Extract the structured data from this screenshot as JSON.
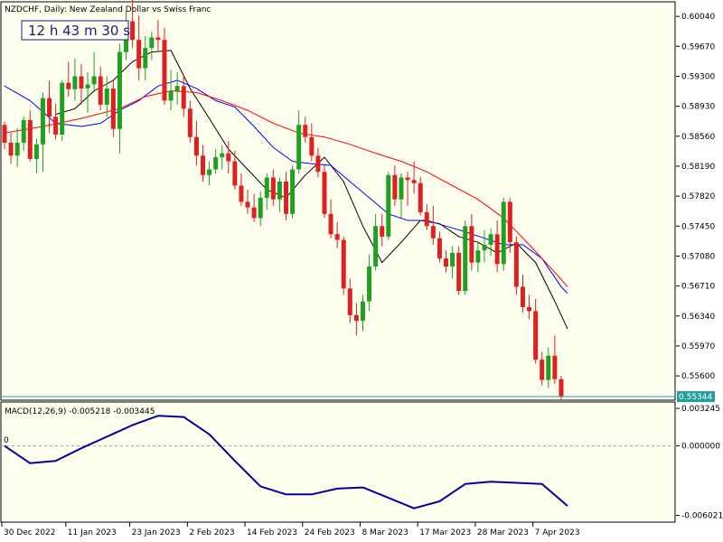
{
  "header": {
    "title": "NZDCHF, Daily:  New Zealand Dollar vs Swiss Franc",
    "timer": "12 h 43 m 30 s"
  },
  "colors": {
    "background": "#fffff0",
    "bull": "#20a020",
    "bear": "#e02020",
    "ma_fast": "#000000",
    "ma_mid": "#0000ff",
    "ma_slow": "#ff0000",
    "macd": "#0000a0",
    "price_line": "#20a0a0"
  },
  "chart_data": [
    {
      "type": "candlestick",
      "symbol": "NZDCHF",
      "timeframe": "Daily",
      "ylim": [
        0.553,
        0.6022
      ],
      "price_ticks": [
        "0.60040",
        "0.59670",
        "0.59300",
        "0.58930",
        "0.58560",
        "0.58190",
        "0.57820",
        "0.57450",
        "0.57080",
        "0.56710",
        "0.56340",
        "0.55970",
        "0.55600"
      ],
      "current_price": "0.55344",
      "date_labels": [
        {
          "label": "30 Dec 2022",
          "index": 0
        },
        {
          "label": "11 Jan 2023",
          "index": 10
        },
        {
          "label": "23 Jan 2023",
          "index": 20
        },
        {
          "label": "2 Feb 2023",
          "index": 29
        },
        {
          "label": "14 Feb 2023",
          "index": 38
        },
        {
          "label": "24 Feb 2023",
          "index": 47
        },
        {
          "label": "8 Mar 2023",
          "index": 56
        },
        {
          "label": "17 Mar 2023",
          "index": 65
        },
        {
          "label": "28 Mar 2023",
          "index": 74
        },
        {
          "label": "7 Apr 2023",
          "index": 83
        }
      ],
      "ohlc": [
        [
          0.587,
          0.5874,
          0.584,
          0.5848
        ],
        [
          0.5848,
          0.586,
          0.5822,
          0.5832
        ],
        [
          0.5832,
          0.5866,
          0.5818,
          0.5848
        ],
        [
          0.5848,
          0.588,
          0.5838,
          0.5876
        ],
        [
          0.5876,
          0.5888,
          0.5825,
          0.5828
        ],
        [
          0.5828,
          0.5853,
          0.581,
          0.5846
        ],
        [
          0.5846,
          0.591,
          0.5812,
          0.5903
        ],
        [
          0.5903,
          0.5925,
          0.586,
          0.588
        ],
        [
          0.588,
          0.5896,
          0.5852,
          0.5858
        ],
        [
          0.5858,
          0.5925,
          0.585,
          0.5922
        ],
        [
          0.5922,
          0.5948,
          0.5905,
          0.5914
        ],
        [
          0.5914,
          0.5952,
          0.59,
          0.593
        ],
        [
          0.593,
          0.5945,
          0.5895,
          0.5915
        ],
        [
          0.5915,
          0.5935,
          0.5885,
          0.592
        ],
        [
          0.592,
          0.596,
          0.591,
          0.593
        ],
        [
          0.593,
          0.5942,
          0.5888,
          0.5895
        ],
        [
          0.5895,
          0.593,
          0.588,
          0.5915
        ],
        [
          0.5915,
          0.5925,
          0.5855,
          0.5865
        ],
        [
          0.5865,
          0.597,
          0.5835,
          0.596
        ],
        [
          0.596,
          0.601,
          0.595,
          0.5998
        ],
        [
          0.5998,
          0.604,
          0.5965,
          0.5975
        ],
        [
          0.5975,
          0.6005,
          0.5925,
          0.594
        ],
        [
          0.594,
          0.598,
          0.5925,
          0.5965
        ],
        [
          0.5965,
          0.5985,
          0.595,
          0.5978
        ],
        [
          0.5978,
          0.6,
          0.5962,
          0.5975
        ],
        [
          0.5975,
          0.599,
          0.5895,
          0.59
        ],
        [
          0.59,
          0.5938,
          0.5888,
          0.5912
        ],
        [
          0.5912,
          0.5935,
          0.5895,
          0.5918
        ],
        [
          0.5918,
          0.5932,
          0.588,
          0.589
        ],
        [
          0.589,
          0.59,
          0.5848,
          0.5855
        ],
        [
          0.5855,
          0.5875,
          0.582,
          0.5832
        ],
        [
          0.5832,
          0.5845,
          0.58,
          0.5808
        ],
        [
          0.5808,
          0.5825,
          0.5795,
          0.5815
        ],
        [
          0.5815,
          0.584,
          0.581,
          0.583
        ],
        [
          0.583,
          0.5845,
          0.5815,
          0.5835
        ],
        [
          0.5835,
          0.585,
          0.581,
          0.5825
        ],
        [
          0.5825,
          0.5838,
          0.579,
          0.5795
        ],
        [
          0.5795,
          0.581,
          0.577,
          0.5775
        ],
        [
          0.5775,
          0.579,
          0.576,
          0.5768
        ],
        [
          0.5768,
          0.5785,
          0.575,
          0.5755
        ],
        [
          0.5755,
          0.5788,
          0.5745,
          0.578
        ],
        [
          0.578,
          0.581,
          0.5765,
          0.5805
        ],
        [
          0.5805,
          0.5815,
          0.577,
          0.5778
        ],
        [
          0.5778,
          0.5805,
          0.5762,
          0.58
        ],
        [
          0.58,
          0.5812,
          0.5752,
          0.576
        ],
        [
          0.576,
          0.582,
          0.5755,
          0.5815
        ],
        [
          0.5815,
          0.5888,
          0.581,
          0.587
        ],
        [
          0.587,
          0.588,
          0.5848,
          0.5855
        ],
        [
          0.5855,
          0.5872,
          0.5825,
          0.5832
        ],
        [
          0.5832,
          0.5842,
          0.5805,
          0.5812
        ],
        [
          0.5812,
          0.582,
          0.5755,
          0.576
        ],
        [
          0.576,
          0.5778,
          0.573,
          0.5735
        ],
        [
          0.5735,
          0.575,
          0.5718,
          0.5728
        ],
        [
          0.5728,
          0.5732,
          0.566,
          0.5668
        ],
        [
          0.5668,
          0.568,
          0.5625,
          0.5635
        ],
        [
          0.5635,
          0.565,
          0.561,
          0.5628
        ],
        [
          0.5628,
          0.566,
          0.5615,
          0.5652
        ],
        [
          0.5652,
          0.571,
          0.564,
          0.5695
        ],
        [
          0.5695,
          0.576,
          0.569,
          0.5745
        ],
        [
          0.5745,
          0.576,
          0.572,
          0.5732
        ],
        [
          0.5732,
          0.5812,
          0.5728,
          0.5808
        ],
        [
          0.5808,
          0.582,
          0.577,
          0.5778
        ],
        [
          0.5778,
          0.581,
          0.5755,
          0.5805
        ],
        [
          0.5805,
          0.5812,
          0.577,
          0.5802
        ],
        [
          0.5802,
          0.5825,
          0.5785,
          0.5798
        ],
        [
          0.5798,
          0.5806,
          0.5758,
          0.5762
        ],
        [
          0.5762,
          0.5772,
          0.574,
          0.5745
        ],
        [
          0.5745,
          0.577,
          0.5722,
          0.573
        ],
        [
          0.573,
          0.5738,
          0.57,
          0.5705
        ],
        [
          0.5705,
          0.5715,
          0.5688,
          0.5695
        ],
        [
          0.5695,
          0.572,
          0.568,
          0.5712
        ],
        [
          0.5712,
          0.572,
          0.566,
          0.5665
        ],
        [
          0.5665,
          0.5752,
          0.566,
          0.5745
        ],
        [
          0.5745,
          0.576,
          0.569,
          0.57
        ],
        [
          0.57,
          0.5725,
          0.5688,
          0.5715
        ],
        [
          0.5715,
          0.574,
          0.57,
          0.5722
        ],
        [
          0.5722,
          0.5742,
          0.5708,
          0.5735
        ],
        [
          0.5735,
          0.5752,
          0.5688,
          0.5698
        ],
        [
          0.5698,
          0.578,
          0.569,
          0.5775
        ],
        [
          0.5775,
          0.578,
          0.5712,
          0.5725
        ],
        [
          0.5725,
          0.5732,
          0.566,
          0.567
        ],
        [
          0.567,
          0.5685,
          0.5638,
          0.5645
        ],
        [
          0.5645,
          0.566,
          0.563,
          0.564
        ],
        [
          0.564,
          0.5655,
          0.5575,
          0.558
        ],
        [
          0.558,
          0.559,
          0.5548,
          0.5555
        ],
        [
          0.5555,
          0.5595,
          0.5545,
          0.5585
        ],
        [
          0.5585,
          0.561,
          0.555,
          0.5556
        ],
        [
          0.5556,
          0.556,
          0.553,
          0.5534
        ]
      ],
      "moving_averages": [
        {
          "color": "#000000",
          "points": [
            [
              8,
              0.5883
            ],
            [
              11,
              0.589
            ],
            [
              14,
              0.5912
            ],
            [
              17,
              0.5925
            ],
            [
              20,
              0.5948
            ],
            [
              23,
              0.596
            ],
            [
              26,
              0.5962
            ],
            [
              29,
              0.5915
            ],
            [
              32,
              0.5878
            ],
            [
              35,
              0.584
            ],
            [
              38,
              0.5815
            ],
            [
              41,
              0.579
            ],
            [
              44,
              0.578
            ],
            [
              47,
              0.5808
            ],
            [
              50,
              0.583
            ],
            [
              53,
              0.58
            ],
            [
              56,
              0.5745
            ],
            [
              59,
              0.57
            ],
            [
              62,
              0.5725
            ],
            [
              65,
              0.5752
            ],
            [
              68,
              0.5748
            ],
            [
              71,
              0.5732
            ],
            [
              74,
              0.5725
            ],
            [
              77,
              0.5712
            ],
            [
              80,
              0.5724
            ],
            [
              83,
              0.57
            ],
            [
              86,
              0.5652
            ],
            [
              88,
              0.5618
            ]
          ]
        },
        {
          "color": "#0000ff",
          "points": [
            [
              0,
              0.5918
            ],
            [
              4,
              0.59
            ],
            [
              8,
              0.5872
            ],
            [
              12,
              0.5868
            ],
            [
              15,
              0.5872
            ],
            [
              18,
              0.5888
            ],
            [
              21,
              0.59
            ],
            [
              24,
              0.5918
            ],
            [
              27,
              0.5925
            ],
            [
              30,
              0.5915
            ],
            [
              33,
              0.59
            ],
            [
              36,
              0.5892
            ],
            [
              39,
              0.5868
            ],
            [
              42,
              0.5842
            ],
            [
              45,
              0.5825
            ],
            [
              48,
              0.5822
            ],
            [
              51,
              0.582
            ],
            [
              54,
              0.58
            ],
            [
              57,
              0.578
            ],
            [
              60,
              0.576
            ],
            [
              63,
              0.5752
            ],
            [
              66,
              0.5752
            ],
            [
              69,
              0.5745
            ],
            [
              72,
              0.5738
            ],
            [
              75,
              0.573
            ],
            [
              78,
              0.5722
            ],
            [
              81,
              0.5722
            ],
            [
              84,
              0.5705
            ],
            [
              87,
              0.567
            ],
            [
              88,
              0.5662
            ]
          ]
        },
        {
          "color": "#ff0000",
          "points": [
            [
              0,
              0.586
            ],
            [
              6,
              0.5868
            ],
            [
              12,
              0.5878
            ],
            [
              18,
              0.589
            ],
            [
              22,
              0.5905
            ],
            [
              26,
              0.5912
            ],
            [
              30,
              0.591
            ],
            [
              34,
              0.59
            ],
            [
              38,
              0.5888
            ],
            [
              42,
              0.5872
            ],
            [
              46,
              0.586
            ],
            [
              50,
              0.5855
            ],
            [
              54,
              0.5846
            ],
            [
              58,
              0.5835
            ],
            [
              62,
              0.5825
            ],
            [
              66,
              0.5812
            ],
            [
              70,
              0.5795
            ],
            [
              74,
              0.5778
            ],
            [
              78,
              0.5755
            ],
            [
              82,
              0.5722
            ],
            [
              86,
              0.5688
            ],
            [
              88,
              0.567
            ]
          ]
        }
      ]
    },
    {
      "type": "line",
      "title": "MACD(12,26,9) -0.005218 -0.003445",
      "ylim": [
        -0.0066,
        0.0038
      ],
      "y_ticks": [
        "0.003245",
        "0.000000",
        "-0.006021"
      ],
      "zero_label": "0",
      "x": [
        0,
        4,
        8,
        12,
        16,
        20,
        24,
        28,
        32,
        36,
        40,
        44,
        48,
        52,
        56,
        60,
        64,
        68,
        72,
        76,
        80,
        84,
        88
      ],
      "values": [
        0.0,
        -0.0015,
        -0.0013,
        -0.0002,
        0.0008,
        0.0018,
        0.0026,
        0.0025,
        0.001,
        -0.0013,
        -0.0035,
        -0.0042,
        -0.0042,
        -0.0037,
        -0.0036,
        -0.0045,
        -0.0054,
        -0.0048,
        -0.0033,
        -0.0031,
        -0.0032,
        -0.0033,
        -0.0052
      ]
    }
  ]
}
